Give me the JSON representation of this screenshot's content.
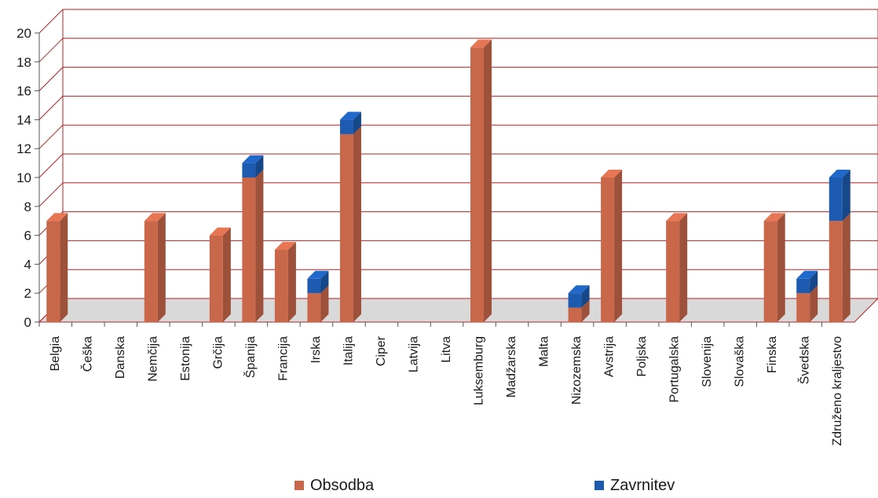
{
  "chart_data": {
    "type": "bar",
    "stacked": true,
    "three_d": true,
    "grid": true,
    "legend_position": "bottom",
    "ylim": [
      0,
      20
    ],
    "y_ticks": [
      0,
      2,
      4,
      6,
      8,
      10,
      12,
      14,
      16,
      18,
      20
    ],
    "categories": [
      "Belgia",
      "Češka",
      "Danska",
      "Nemčija",
      "Estonija",
      "Grčija",
      "Španija",
      "Francija",
      "Irska",
      "Italija",
      "Ciper",
      "Latvija",
      "Litva",
      "Luksemburg",
      "Madžarska",
      "Malta",
      "Nizozemska",
      "Avstrija",
      "Poljska",
      "Portugalska",
      "Slovenija",
      "Slovaška",
      "Finska",
      "Švedska",
      "Združeno kraljestvo"
    ],
    "series": [
      {
        "name": "Obsodba",
        "color": "#c9674a",
        "values": [
          7,
          0,
          0,
          7,
          0,
          6,
          10,
          5,
          2,
          13,
          0,
          0,
          0,
          19,
          0,
          0,
          1,
          10,
          0,
          7,
          0,
          0,
          7,
          2,
          7
        ]
      },
      {
        "name": "Zavrnitev",
        "color": "#1c5bb0",
        "values": [
          0,
          0,
          0,
          0,
          0,
          0,
          1,
          0,
          1,
          1,
          0,
          0,
          0,
          0,
          0,
          0,
          1,
          0,
          0,
          0,
          0,
          0,
          0,
          1,
          3
        ]
      }
    ],
    "colors": {
      "grid": "#b22222",
      "floor": "#d9d9d9"
    }
  }
}
